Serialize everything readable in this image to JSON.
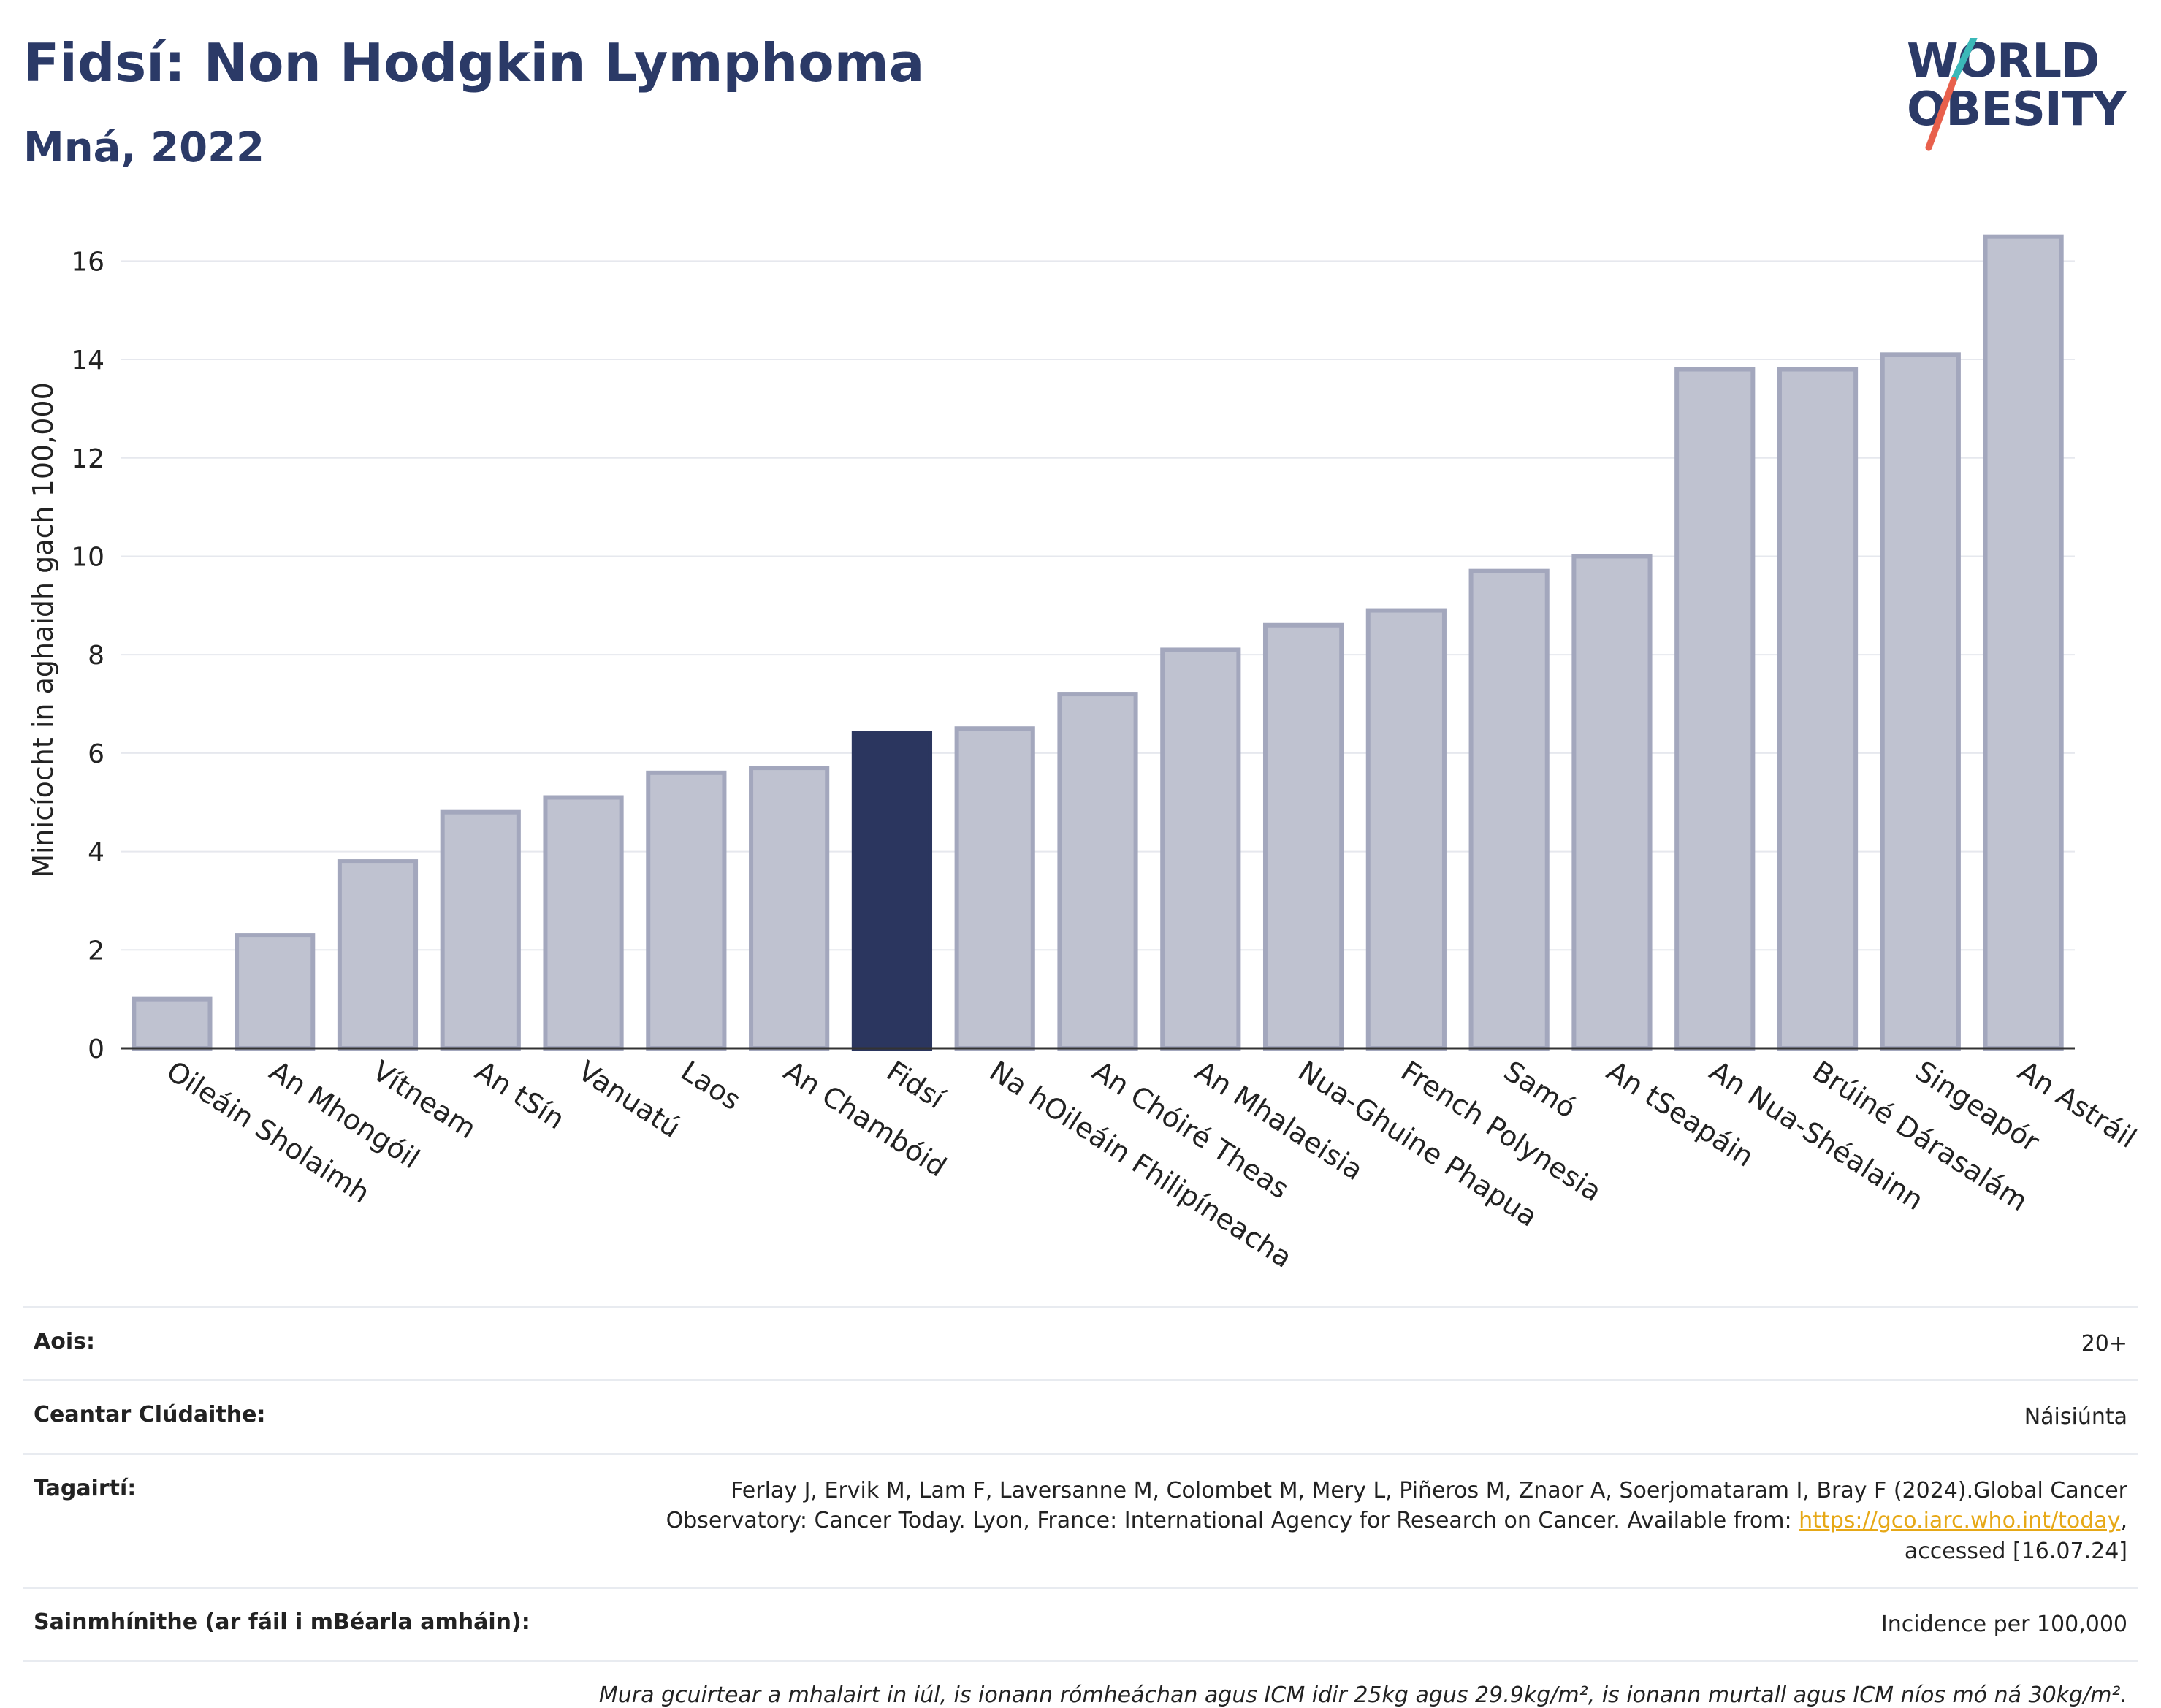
{
  "header": {
    "title": "Fidsí: Non Hodgkin Lymphoma",
    "subtitle": "Mná, 2022"
  },
  "logo": {
    "line1": "WORLD",
    "line2": "OBESITY"
  },
  "colors": {
    "highlight": "#2b365f",
    "bar_fill": "#bfc2d0",
    "bar_stroke": "#a3a7bd",
    "grid": "#e6e8ee",
    "logo_teal": "#3bb8b8",
    "logo_red": "#e8604c"
  },
  "chart_data": {
    "type": "bar",
    "ylabel": "Minicíocht in aghaidh gach 100,000",
    "ylim": [
      0,
      17
    ],
    "yticks": [
      0,
      2,
      4,
      6,
      8,
      10,
      12,
      14,
      16
    ],
    "grid": true,
    "highlight_category": "Fidsí",
    "categories": [
      "Oileáin Sholaimh",
      "An Mhongóil",
      "Vítneam",
      "An tSín",
      "Vanuatú",
      "Laos",
      "An Chambóid",
      "Fidsí",
      "Na hOileáin Fhilipíneacha",
      "An Chóiré Theas",
      "An Mhalaeisia",
      "Nua-Ghuine Phapua",
      "French Polynesia",
      "Samó",
      "An tSeapáin",
      "An Nua-Shéalainn",
      "Brúiné Dárasalám",
      "Singeapór",
      "An Astráil"
    ],
    "values": [
      1.0,
      2.3,
      3.8,
      4.8,
      5.1,
      5.6,
      5.7,
      6.4,
      6.5,
      7.2,
      8.1,
      8.6,
      8.9,
      9.7,
      10.0,
      13.8,
      13.8,
      14.1,
      16.5
    ]
  },
  "info": {
    "age_label": "Aois:",
    "age_value": "20+",
    "area_label": "Ceantar Clúdaithe:",
    "area_value": "Náisiúnta",
    "refs_label": "Tagairtí:",
    "refs_line1": "Ferlay J, Ervik M, Lam F, Laversanne M, Colombet M, Mery L, Piñeros M, Znaor A, Soerjomataram I, Bray F (2024).Global Cancer",
    "refs_line2_pre": "Observatory: Cancer Today. Lyon, France: International Agency for Research on Cancer. Available from: ",
    "refs_link": "https://gco.iarc.who.int/today",
    "refs_line2_post": ",",
    "refs_line3": "accessed [16.07.24]",
    "defs_label": "Sainmhínithe (ar fáil i mBéarla amháin):",
    "defs_value": "Incidence per 100,000",
    "note": "Mura gcuirtear a mhalairt in iúl, is ionann rómheáchan agus ICM idir 25kg agus 29.9kg/m², is ionann murtall agus ICM níos mó ná 30kg/m²."
  }
}
